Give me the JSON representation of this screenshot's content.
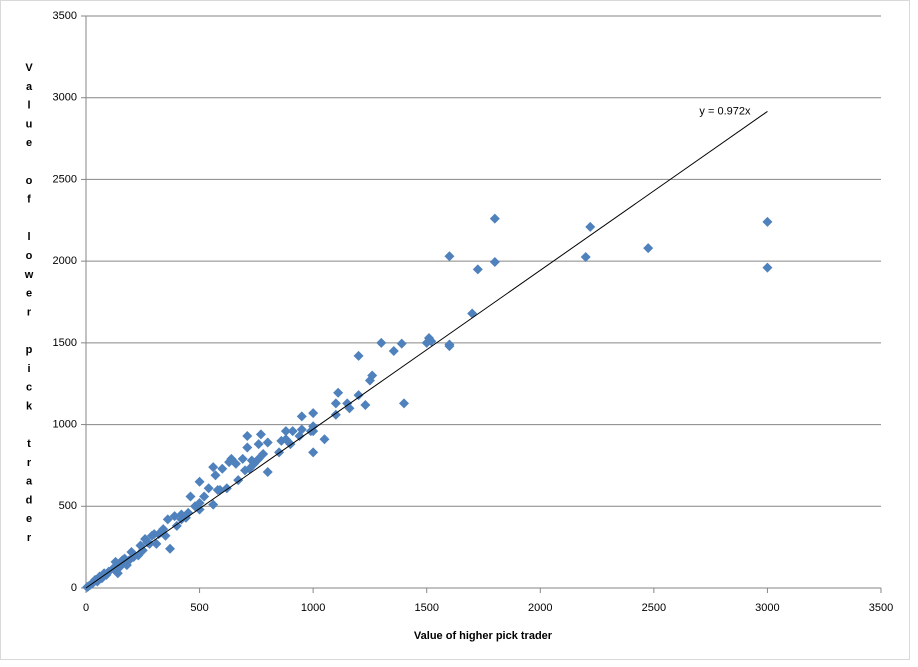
{
  "chart_data": {
    "type": "scatter",
    "x_label": "Value of higher pick trader",
    "y_label": "Value of lower pick trader",
    "xlim": [
      0,
      3500
    ],
    "ylim": [
      0,
      3500
    ],
    "xticks": [
      0,
      500,
      1000,
      1500,
      2000,
      2500,
      3000,
      3500
    ],
    "yticks": [
      0,
      500,
      1000,
      1500,
      2000,
      2500,
      3000,
      3500
    ],
    "grid": true,
    "series": [
      {
        "color": "#4f81bd",
        "x": [
          3000,
          3000,
          2475,
          2220,
          2200,
          1800,
          1800,
          1725,
          1700,
          1600,
          1600,
          1600,
          1510,
          1500,
          1520,
          1400,
          1390,
          1355,
          1300,
          1260,
          1250,
          1230,
          1200,
          1200,
          1160,
          1150,
          1110,
          1100,
          1100,
          1050,
          1000,
          1000,
          1000,
          1000,
          990,
          950,
          950,
          940,
          910,
          900,
          880,
          880,
          860,
          850,
          800,
          800,
          780,
          770,
          760,
          760,
          740,
          730,
          720,
          710,
          710,
          700,
          690,
          670,
          660,
          640,
          630,
          600,
          590,
          580,
          570,
          560,
          540,
          520,
          500,
          500,
          500,
          480,
          460,
          450,
          440,
          420,
          400,
          390,
          370,
          360,
          350,
          340,
          320,
          310,
          300,
          290,
          280,
          260,
          250,
          240,
          230,
          200,
          190,
          180,
          160,
          150,
          140,
          130,
          120,
          100,
          90,
          80,
          70,
          60,
          50,
          40,
          30,
          20,
          10,
          5,
          560,
          620,
          270,
          330,
          170,
          210,
          420
        ],
        "y": [
          2240,
          1960,
          2080,
          2210,
          2025,
          2260,
          1995,
          1950,
          1680,
          2030,
          1490,
          1480,
          1530,
          1500,
          1510,
          1130,
          1495,
          1450,
          1500,
          1300,
          1270,
          1120,
          1180,
          1420,
          1100,
          1130,
          1195,
          1060,
          1130,
          910,
          1070,
          830,
          990,
          960,
          960,
          1050,
          970,
          930,
          960,
          880,
          960,
          910,
          900,
          830,
          890,
          710,
          820,
          940,
          790,
          880,
          760,
          780,
          730,
          860,
          930,
          720,
          790,
          660,
          760,
          790,
          770,
          730,
          600,
          600,
          690,
          740,
          610,
          560,
          650,
          480,
          520,
          500,
          560,
          460,
          430,
          450,
          380,
          440,
          240,
          420,
          320,
          360,
          330,
          270,
          330,
          320,
          270,
          300,
          230,
          260,
          200,
          220,
          170,
          140,
          170,
          130,
          90,
          160,
          120,
          100,
          80,
          90,
          60,
          70,
          40,
          50,
          30,
          20,
          10,
          5,
          510,
          610,
          280,
          340,
          180,
          190,
          420
        ]
      }
    ],
    "trendline": {
      "label": "y = 0.972x",
      "slope": 0.972,
      "xrange": [
        0,
        3000
      ],
      "color": "#000000"
    }
  }
}
